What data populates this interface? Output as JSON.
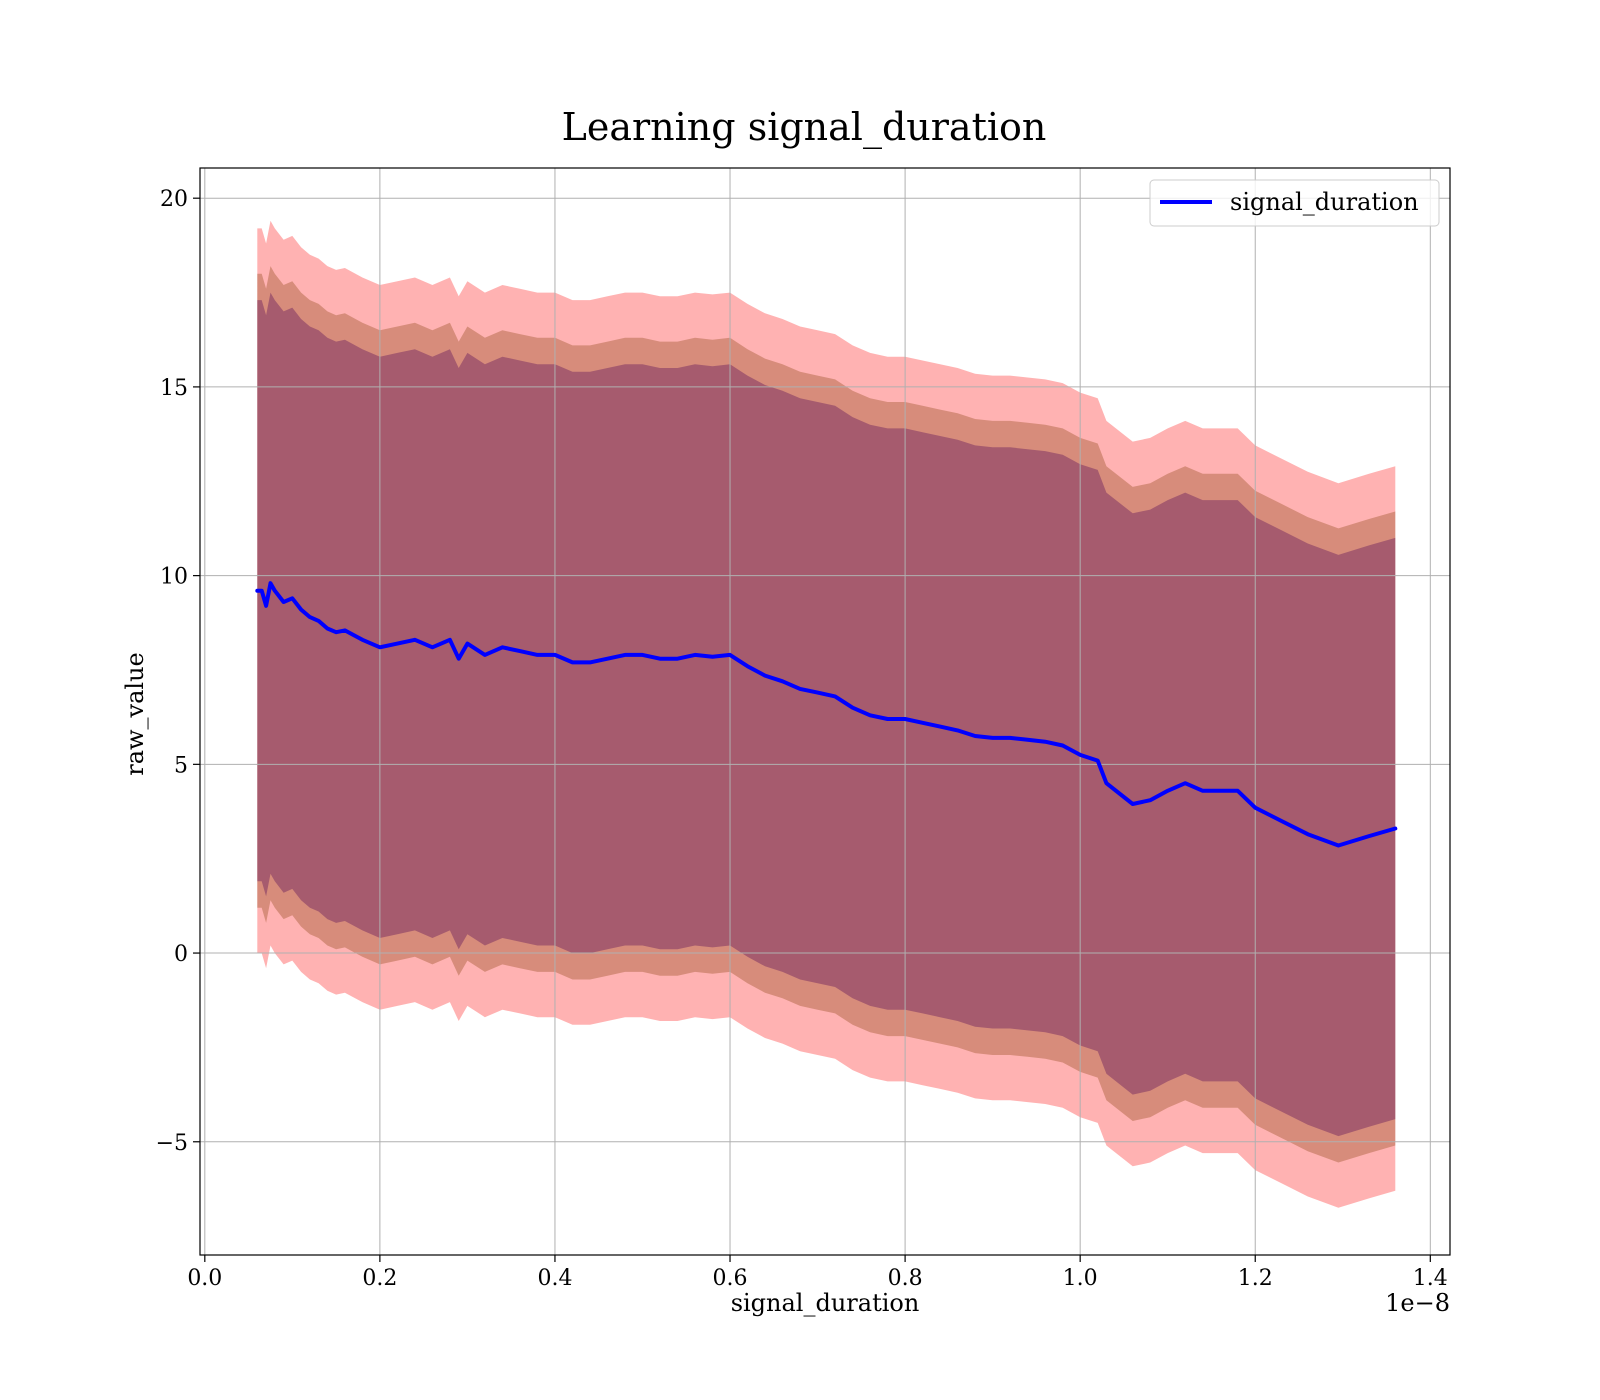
{
  "chart_data": {
    "type": "line",
    "title": "Learning signal_duration",
    "xlabel": "signal_duration",
    "ylabel": "raw_value",
    "x_offset_label": "1e−8",
    "x_scale": 1e-08,
    "xlim": [
      -5.5e-11,
      1.4225e-08
    ],
    "ylim": [
      -8.0,
      20.8
    ],
    "grid": true,
    "legend_position": "top-right",
    "x_ticks": [
      {
        "value": 0.0,
        "label": "0.0"
      },
      {
        "value": 2e-09,
        "label": "0.2"
      },
      {
        "value": 4e-09,
        "label": "0.4"
      },
      {
        "value": 6e-09,
        "label": "0.6"
      },
      {
        "value": 8e-09,
        "label": "0.8"
      },
      {
        "value": 1e-08,
        "label": "1.0"
      },
      {
        "value": 1.2e-08,
        "label": "1.2"
      },
      {
        "value": 1.4e-08,
        "label": "1.4"
      }
    ],
    "y_ticks": [
      {
        "value": 20,
        "label": "20"
      },
      {
        "value": 15,
        "label": "15"
      },
      {
        "value": 10,
        "label": "10"
      },
      {
        "value": 5,
        "label": "5"
      },
      {
        "value": 0,
        "label": "0"
      },
      {
        "value": -5,
        "label": "−5"
      }
    ],
    "series": [
      {
        "name": "signal_duration",
        "color": "#0000ff",
        "x": [
          6e-10,
          6.5e-10,
          7e-10,
          7.5e-10,
          8e-10,
          9e-10,
          1e-09,
          1.1e-09,
          1.2e-09,
          1.3e-09,
          1.4e-09,
          1.5e-09,
          1.6e-09,
          1.8e-09,
          2e-09,
          2.2e-09,
          2.4e-09,
          2.6e-09,
          2.8e-09,
          2.9e-09,
          3e-09,
          3.2e-09,
          3.4e-09,
          3.6e-09,
          3.8e-09,
          4e-09,
          4.2e-09,
          4.4e-09,
          4.6e-09,
          4.8e-09,
          5e-09,
          5.2e-09,
          5.4e-09,
          5.6e-09,
          5.8e-09,
          6e-09,
          6.2e-09,
          6.4e-09,
          6.6e-09,
          6.8e-09,
          7e-09,
          7.2e-09,
          7.4e-09,
          7.6e-09,
          7.8e-09,
          8e-09,
          8.2e-09,
          8.4e-09,
          8.6e-09,
          8.8e-09,
          9e-09,
          9.2e-09,
          9.4e-09,
          9.6e-09,
          9.8e-09,
          1e-08,
          1.02e-08,
          1.03e-08,
          1.06e-08,
          1.08e-08,
          1.1e-08,
          1.12e-08,
          1.14e-08,
          1.16e-08,
          1.18e-08,
          1.2e-08,
          1.23e-08,
          1.26e-08,
          1.295e-08,
          1.33e-08,
          1.36e-08
        ],
        "y": [
          9.6,
          9.6,
          9.2,
          9.8,
          9.6,
          9.3,
          9.4,
          9.1,
          8.9,
          8.8,
          8.6,
          8.5,
          8.55,
          8.3,
          8.1,
          8.2,
          8.3,
          8.1,
          8.3,
          7.8,
          8.2,
          7.9,
          8.1,
          8.0,
          7.9,
          7.9,
          7.7,
          7.7,
          7.8,
          7.9,
          7.9,
          7.8,
          7.8,
          7.9,
          7.85,
          7.9,
          7.6,
          7.35,
          7.2,
          7.0,
          6.9,
          6.8,
          6.5,
          6.3,
          6.2,
          6.2,
          6.1,
          6.0,
          5.9,
          5.75,
          5.7,
          5.7,
          5.65,
          5.6,
          5.5,
          5.25,
          5.1,
          4.5,
          3.95,
          4.05,
          4.3,
          4.5,
          4.3,
          4.3,
          4.3,
          3.85,
          3.5,
          3.15,
          2.85,
          3.1,
          3.3
        ]
      }
    ],
    "bands": [
      {
        "color": "#ff0000",
        "opacity": 0.3,
        "half_width": 9.6
      },
      {
        "color": "#8b4513",
        "opacity": 0.35,
        "half_width": 8.4
      },
      {
        "color": "#4b0055",
        "opacity": 0.35,
        "half_width": 7.7
      }
    ]
  }
}
